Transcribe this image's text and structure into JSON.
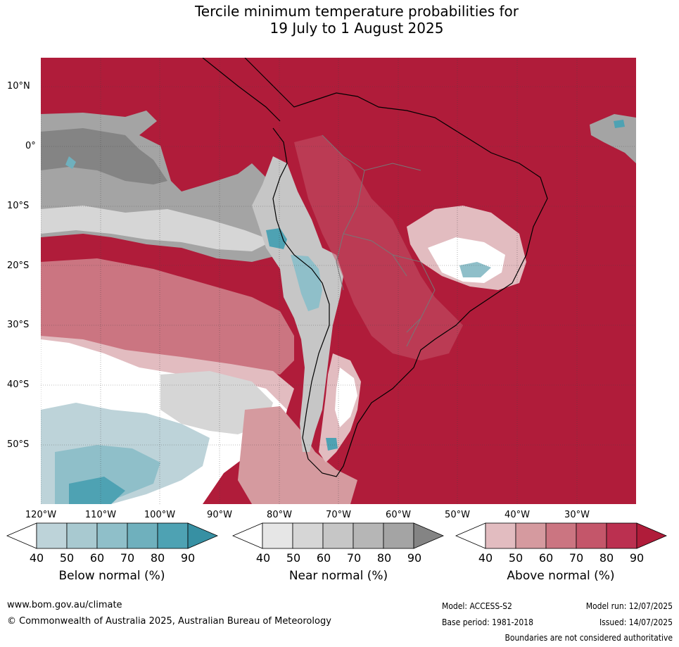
{
  "title_line1": "Tercile minimum temperature probabilities for",
  "title_line2": "19 July to 1 August 2025",
  "map": {
    "lat_labels": [
      "10°N",
      "0°",
      "10°S",
      "20°S",
      "30°S",
      "40°S",
      "50°S"
    ],
    "lon_labels": [
      "120°W",
      "110°W",
      "100°W",
      "90°W",
      "80°W",
      "70°W",
      "60°W",
      "50°W",
      "40°W",
      "30°W"
    ],
    "colors": {
      "ocean_above": "#b01c3a",
      "above_80": "#bb3050",
      "above_70": "#c4566a",
      "above_60": "#cb7581",
      "above_50": "#d59a9f",
      "above_40": "#e2bcc0",
      "near_90": "#848484",
      "near_80": "#a4a4a4",
      "near_70": "#b6b6b6",
      "near_60": "#c6c6c6",
      "near_50": "#d6d6d6",
      "near_40": "#e6e6e6",
      "below_90": "#3d97aa",
      "below_80": "#4ea2b3",
      "below_70": "#6fb0bd",
      "below_60": "#8fbfc9",
      "below_50": "#a8c9d0",
      "below_40": "#bdd3d9"
    }
  },
  "colorbars": [
    {
      "label": "Below normal (%)",
      "ticks": [
        "40",
        "50",
        "60",
        "70",
        "80",
        "90"
      ],
      "colors": [
        "#bdd3d9",
        "#a8c9d0",
        "#8fbfc9",
        "#6fb0bd",
        "#4ea2b3",
        "#3790a3"
      ]
    },
    {
      "label": "Near normal (%)",
      "ticks": [
        "40",
        "50",
        "60",
        "70",
        "80",
        "90"
      ],
      "colors": [
        "#e6e6e6",
        "#d6d6d6",
        "#c6c6c6",
        "#b6b6b6",
        "#a4a4a4",
        "#848484"
      ]
    },
    {
      "label": "Above normal (%)",
      "ticks": [
        "40",
        "50",
        "60",
        "70",
        "80",
        "90"
      ],
      "colors": [
        "#e2bcc0",
        "#d59a9f",
        "#cb7581",
        "#c4566a",
        "#bb3050",
        "#b01c3a"
      ]
    }
  ],
  "footer": {
    "website": "www.bom.gov.au/climate",
    "copyright": "© Commonwealth of Australia 2025, Australian Bureau of Meteorology",
    "model": "Model: ACCESS-S2",
    "base_period": "Base period: 1981-2018",
    "model_run": "Model run: 12/07/2025",
    "issued": "Issued: 14/07/2025",
    "disclaimer": "Boundaries are not considered authoritative"
  }
}
